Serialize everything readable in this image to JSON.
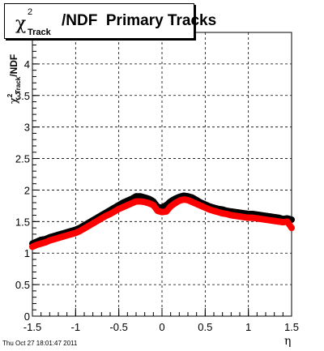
{
  "title": {
    "symbol": "χ",
    "superscript": "2",
    "subscript": "Track",
    "text": "/NDF  Primary Tracks"
  },
  "timestamp": "Thu Oct 27 18:01:47 2011",
  "chart_data": {
    "type": "scatter",
    "title": "χ²_Track/NDF  Primary Tracks",
    "xlabel": "η",
    "ylabel": "χ²_Track/NDF",
    "xlim": [
      -1.5,
      1.5
    ],
    "ylim": [
      0,
      4.5
    ],
    "grid": true,
    "x_ticks": [
      -1.5,
      -1,
      -0.5,
      0,
      0.5,
      1,
      1.5
    ],
    "x_tick_labels": [
      "-1.5",
      "-1",
      "-0.5",
      "0",
      "0.5",
      "1",
      "1.5"
    ],
    "y_ticks": [
      0,
      0.5,
      1,
      1.5,
      2,
      2.5,
      3,
      3.5,
      4
    ],
    "y_tick_labels": [
      "0",
      "0.5",
      "1",
      "1.5",
      "2",
      "2.5",
      "3",
      "3.5",
      "4"
    ],
    "colors": {
      "series_black": "#000000",
      "series_red": "#ff0000"
    },
    "x": [
      -1.5,
      -1.45,
      -1.4,
      -1.35,
      -1.3,
      -1.25,
      -1.2,
      -1.15,
      -1.1,
      -1.05,
      -1.0,
      -0.95,
      -0.9,
      -0.85,
      -0.8,
      -0.75,
      -0.7,
      -0.65,
      -0.6,
      -0.55,
      -0.5,
      -0.45,
      -0.4,
      -0.35,
      -0.3,
      -0.25,
      -0.2,
      -0.15,
      -0.1,
      -0.05,
      0.0,
      0.05,
      0.1,
      0.15,
      0.2,
      0.25,
      0.3,
      0.35,
      0.4,
      0.45,
      0.5,
      0.55,
      0.6,
      0.65,
      0.7,
      0.75,
      0.8,
      0.85,
      0.9,
      0.95,
      1.0,
      1.05,
      1.1,
      1.15,
      1.2,
      1.25,
      1.3,
      1.35,
      1.4,
      1.45,
      1.5
    ],
    "series": [
      {
        "values": [
          1.15,
          1.18,
          1.21,
          1.22,
          1.25,
          1.27,
          1.29,
          1.31,
          1.33,
          1.35,
          1.37,
          1.4,
          1.44,
          1.48,
          1.52,
          1.56,
          1.6,
          1.64,
          1.68,
          1.72,
          1.76,
          1.8,
          1.83,
          1.86,
          1.9,
          1.9,
          1.88,
          1.86,
          1.82,
          1.73,
          1.72,
          1.76,
          1.82,
          1.86,
          1.89,
          1.91,
          1.9,
          1.88,
          1.84,
          1.8,
          1.77,
          1.74,
          1.72,
          1.7,
          1.69,
          1.67,
          1.66,
          1.65,
          1.64,
          1.63,
          1.62,
          1.62,
          1.61,
          1.6,
          1.59,
          1.58,
          1.57,
          1.56,
          1.54,
          1.55,
          1.53
        ]
      },
      {
        "values": [
          1.1,
          1.13,
          1.15,
          1.17,
          1.2,
          1.22,
          1.24,
          1.26,
          1.28,
          1.3,
          1.32,
          1.35,
          1.39,
          1.43,
          1.47,
          1.51,
          1.55,
          1.59,
          1.62,
          1.66,
          1.7,
          1.73,
          1.76,
          1.79,
          1.82,
          1.82,
          1.81,
          1.79,
          1.76,
          1.67,
          1.65,
          1.66,
          1.74,
          1.79,
          1.83,
          1.85,
          1.84,
          1.81,
          1.78,
          1.75,
          1.72,
          1.69,
          1.67,
          1.65,
          1.63,
          1.62,
          1.6,
          1.59,
          1.58,
          1.57,
          1.56,
          1.56,
          1.55,
          1.54,
          1.53,
          1.52,
          1.51,
          1.5,
          1.49,
          1.5,
          1.4
        ]
      }
    ]
  }
}
